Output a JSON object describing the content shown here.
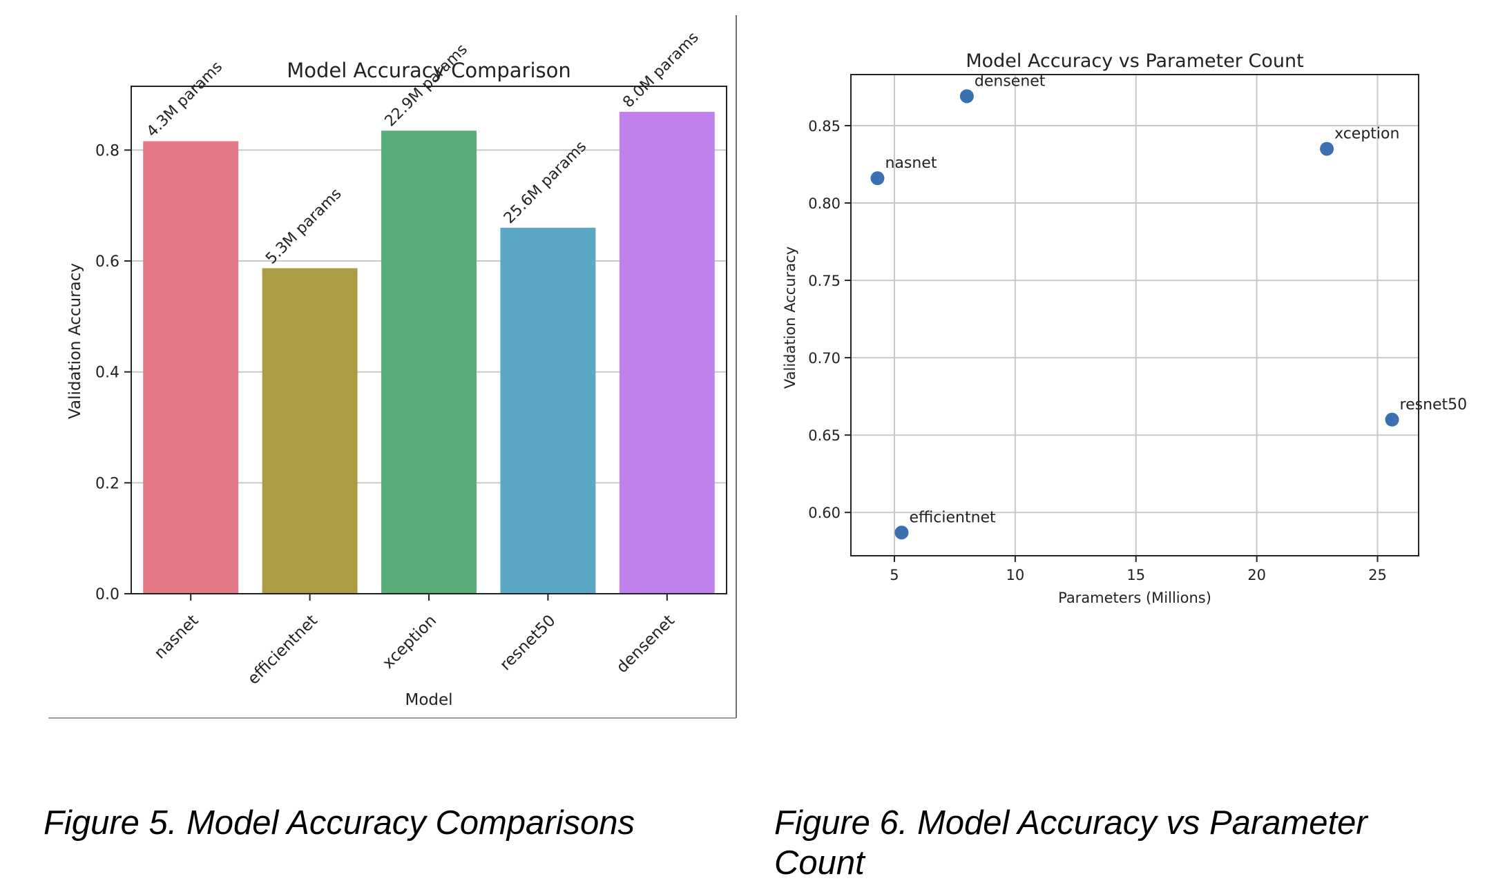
{
  "chart_data": [
    {
      "type": "bar",
      "title": "Model Accuracy Comparison",
      "xlabel": "Model",
      "ylabel": "Validation Accuracy",
      "categories": [
        "nasnet",
        "efficientnet",
        "xception",
        "resnet50",
        "densenet"
      ],
      "values": [
        0.816,
        0.587,
        0.835,
        0.66,
        0.869
      ],
      "bar_labels": [
        "4.3M params",
        "5.3M params",
        "22.9M params",
        "25.6M params",
        "8.0M params"
      ],
      "colors": [
        "#e57886",
        "#ab9c45",
        "#58ad7a",
        "#5ba8c4",
        "#c081ec"
      ],
      "ylim": [
        0,
        0.915
      ],
      "yticks": [
        0.0,
        0.2,
        0.4,
        0.6,
        0.8
      ],
      "ytick_labels": [
        "0.0",
        "0.2",
        "0.4",
        "0.6",
        "0.8"
      ],
      "grid": "y",
      "caption": "Figure 5. Model Accuracy Comparisons"
    },
    {
      "type": "scatter",
      "title": "Model Accuracy vs Parameter Count",
      "xlabel": "Parameters (Millions)",
      "ylabel": "Validation Accuracy",
      "points": [
        {
          "label": "nasnet",
          "x": 4.3,
          "y": 0.816
        },
        {
          "label": "efficientnet",
          "x": 5.3,
          "y": 0.587
        },
        {
          "label": "xception",
          "x": 22.9,
          "y": 0.835
        },
        {
          "label": "resnet50",
          "x": 25.6,
          "y": 0.66
        },
        {
          "label": "densenet",
          "x": 8.0,
          "y": 0.869
        }
      ],
      "marker_color": "#3a6fb0",
      "xlim": [
        3.2,
        26.7
      ],
      "ylim": [
        0.572,
        0.883
      ],
      "xticks": [
        5,
        10,
        15,
        20,
        25
      ],
      "xtick_labels": [
        "5",
        "10",
        "15",
        "20",
        "25"
      ],
      "yticks": [
        0.6,
        0.65,
        0.7,
        0.75,
        0.8,
        0.85
      ],
      "ytick_labels": [
        "0.60",
        "0.65",
        "0.70",
        "0.75",
        "0.80",
        "0.85"
      ],
      "grid": "both",
      "caption": "Figure 6. Model Accuracy vs Parameter Count"
    }
  ]
}
